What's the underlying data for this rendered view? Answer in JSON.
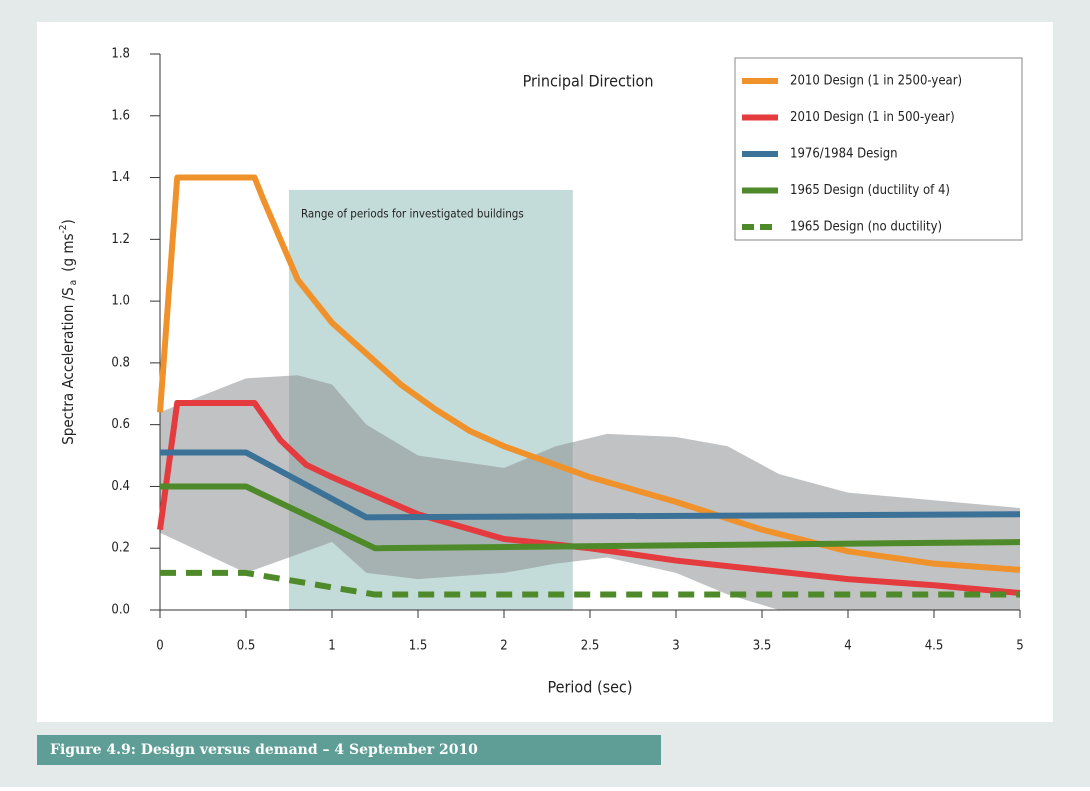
{
  "chart_data": {
    "type": "line",
    "title": "Principal Direction",
    "x_label": "Period (sec)",
    "y_label_parts": [
      "Spectra Acceleration /S",
      "a",
      "(g ms",
      "-2",
      ")"
    ],
    "caption": "Figure 4.9: Design versus demand – 4 September 2010",
    "shaded_region": {
      "label": "Range of periods for investigated buildings",
      "x": [
        0.75,
        2.4
      ],
      "top": 1.36,
      "color": "#9cc4c0"
    },
    "envelope": {
      "color": "#8e9092",
      "x": [
        0,
        0.5,
        0.8,
        1,
        1.2,
        1.5,
        2,
        2.3,
        2.6,
        3,
        3.3,
        3.6,
        4,
        5
      ],
      "upper": [
        0.64,
        0.75,
        0.76,
        0.73,
        0.6,
        0.5,
        0.46,
        0.53,
        0.57,
        0.56,
        0.53,
        0.44,
        0.38,
        0.33
      ],
      "lower": [
        0.25,
        0.12,
        0.18,
        0.22,
        0.12,
        0.1,
        0.12,
        0.15,
        0.17,
        0.12,
        0.05,
        0.0,
        0.0,
        0.0
      ]
    },
    "xlim": [
      0,
      5
    ],
    "ylim": [
      0,
      1.8
    ],
    "xticks": [
      0,
      0.5,
      1,
      1.5,
      2,
      2.5,
      3,
      3.5,
      4,
      4.5,
      5
    ],
    "yticks": [
      {
        "value": 0,
        "label": "0.0"
      },
      {
        "value": 0.2,
        "label": "0.2"
      },
      {
        "value": 0.4,
        "label": "0.4"
      },
      {
        "value": 0.6,
        "label": "0.6"
      },
      {
        "value": 0.8,
        "label": "0.8"
      },
      {
        "value": 1,
        "label": "1.0"
      },
      {
        "value": 1.2,
        "label": "1.2"
      },
      {
        "value": 1.4,
        "label": "1.4"
      },
      {
        "value": 1.6,
        "label": "1.6"
      },
      {
        "value": 1.8,
        "label": "1.8"
      }
    ],
    "legend": "upper right",
    "series": [
      {
        "name": "2010 Design (1 in 2500-year)",
        "color": "#f0922b",
        "dashed": false,
        "x": [
          0,
          0.1,
          0.55,
          0.6,
          0.7,
          0.8,
          1,
          1.2,
          1.4,
          1.6,
          1.8,
          2,
          2.5,
          3,
          3.5,
          4,
          4.5,
          5
        ],
        "values": [
          0.64,
          1.4,
          1.4,
          1.33,
          1.2,
          1.07,
          0.93,
          0.83,
          0.73,
          0.65,
          0.58,
          0.53,
          0.43,
          0.35,
          0.26,
          0.19,
          0.15,
          0.13
        ]
      },
      {
        "name": "2010 Design (1 in 500-year)",
        "color": "#e33b3e",
        "dashed": false,
        "x": [
          0,
          0.1,
          0.55,
          0.7,
          0.85,
          1,
          1.5,
          2,
          2.5,
          3,
          3.5,
          4,
          4.5,
          5
        ],
        "values": [
          0.26,
          0.67,
          0.67,
          0.55,
          0.47,
          0.43,
          0.31,
          0.23,
          0.2,
          0.16,
          0.13,
          0.1,
          0.08,
          0.055
        ]
      },
      {
        "name": "1976/1984 Design",
        "color": "#3c7297",
        "dashed": false,
        "x": [
          0,
          0.5,
          1.2,
          5
        ],
        "values": [
          0.51,
          0.51,
          0.3,
          0.31
        ]
      },
      {
        "name": "1965 Design (ductility of 4)",
        "color": "#4f8a2a",
        "dashed": false,
        "x": [
          0,
          0.5,
          1.25,
          5
        ],
        "values": [
          0.4,
          0.4,
          0.2,
          0.22
        ]
      },
      {
        "name": "1965 Design (no ductility)",
        "color": "#4f8a2a",
        "dashed": true,
        "x": [
          0,
          0.5,
          1.25,
          5
        ],
        "values": [
          0.12,
          0.12,
          0.05,
          0.05
        ]
      }
    ]
  }
}
